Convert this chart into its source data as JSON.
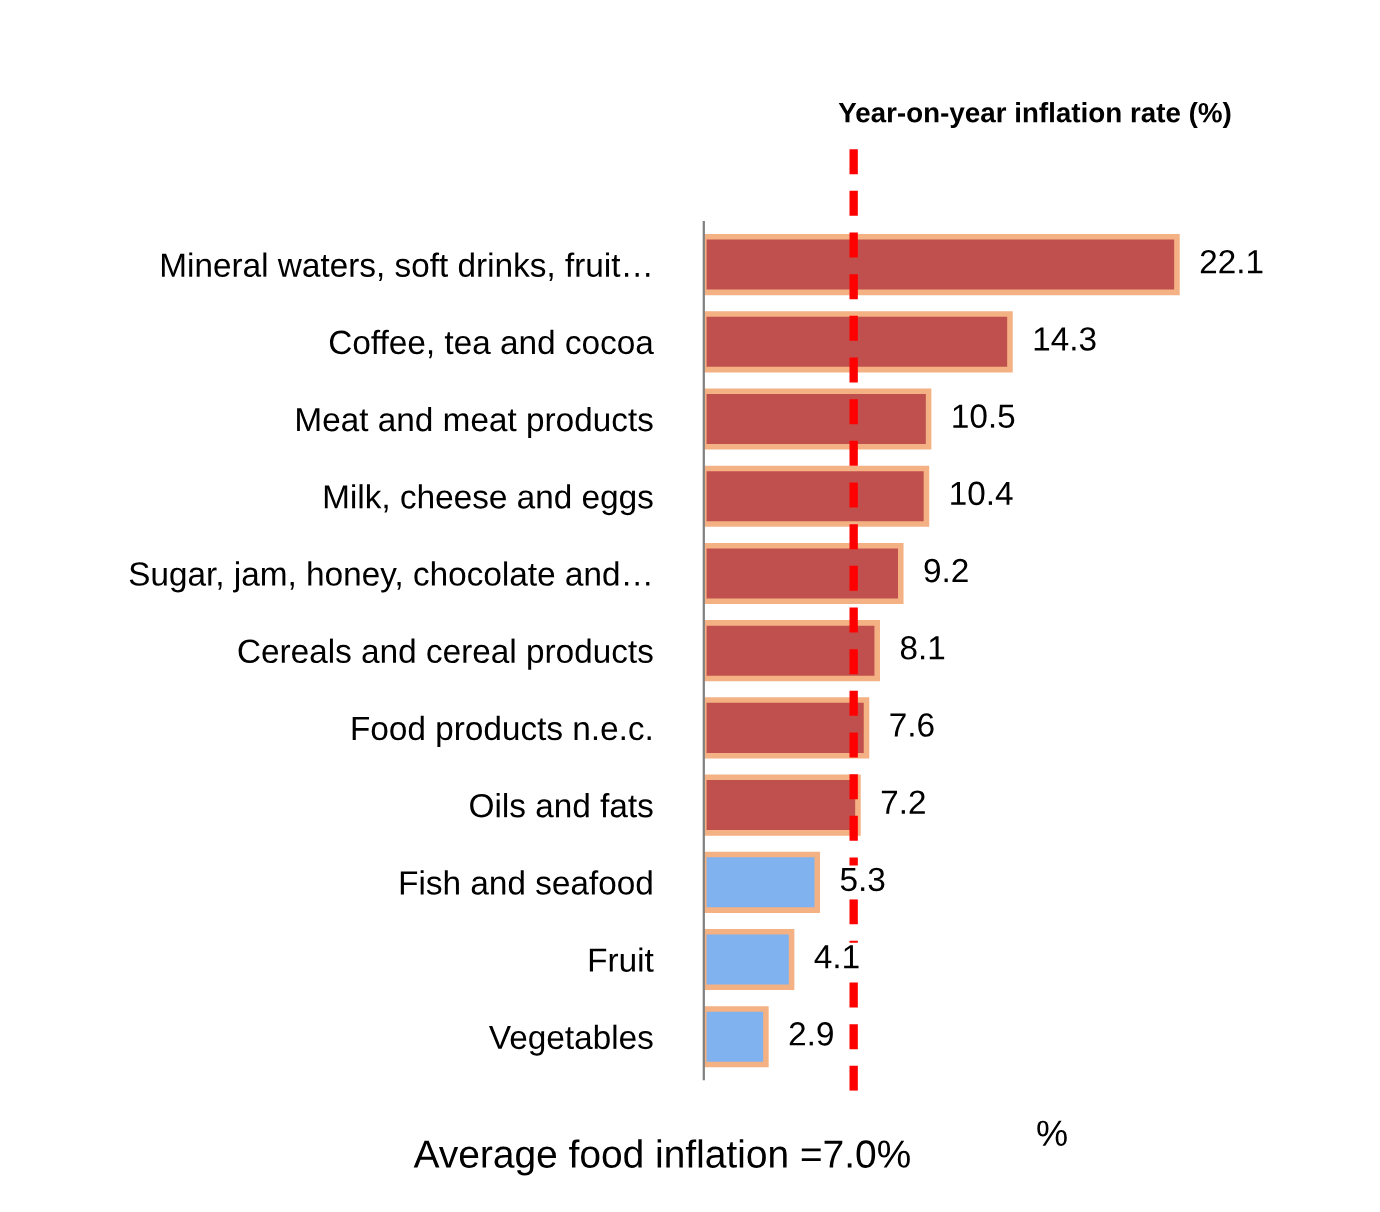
{
  "chart_data": {
    "type": "bar",
    "orientation": "horizontal",
    "title": "Year-on-year inflation rate (%)",
    "xlabel": "%",
    "categories": [
      "Mineral waters, soft drinks, fruit…",
      "Coffee, tea and cocoa",
      "Meat and meat products",
      "Milk, cheese and eggs",
      "Sugar, jam, honey, chocolate and…",
      "Cereals and cereal products",
      "Food products n.e.c.",
      "Oils and fats",
      "Fish and seafood",
      "Fruit",
      "Vegetables"
    ],
    "values": [
      22.1,
      14.3,
      10.5,
      10.4,
      9.2,
      8.1,
      7.6,
      7.2,
      5.3,
      4.1,
      2.9
    ],
    "colors": [
      "#c0504d",
      "#c0504d",
      "#c0504d",
      "#c0504d",
      "#c0504d",
      "#c0504d",
      "#c0504d",
      "#c0504d",
      "#7fb2ee",
      "#7fb2ee",
      "#7fb2ee"
    ],
    "data_labels": true,
    "tick_labels": "y",
    "grid": false,
    "legend": false,
    "ref_lines": [
      {
        "axis": "x",
        "value": 7.0,
        "label": "Average food inflation =7.0%",
        "color": "#ff0000",
        "line_style": "dashed"
      }
    ]
  }
}
